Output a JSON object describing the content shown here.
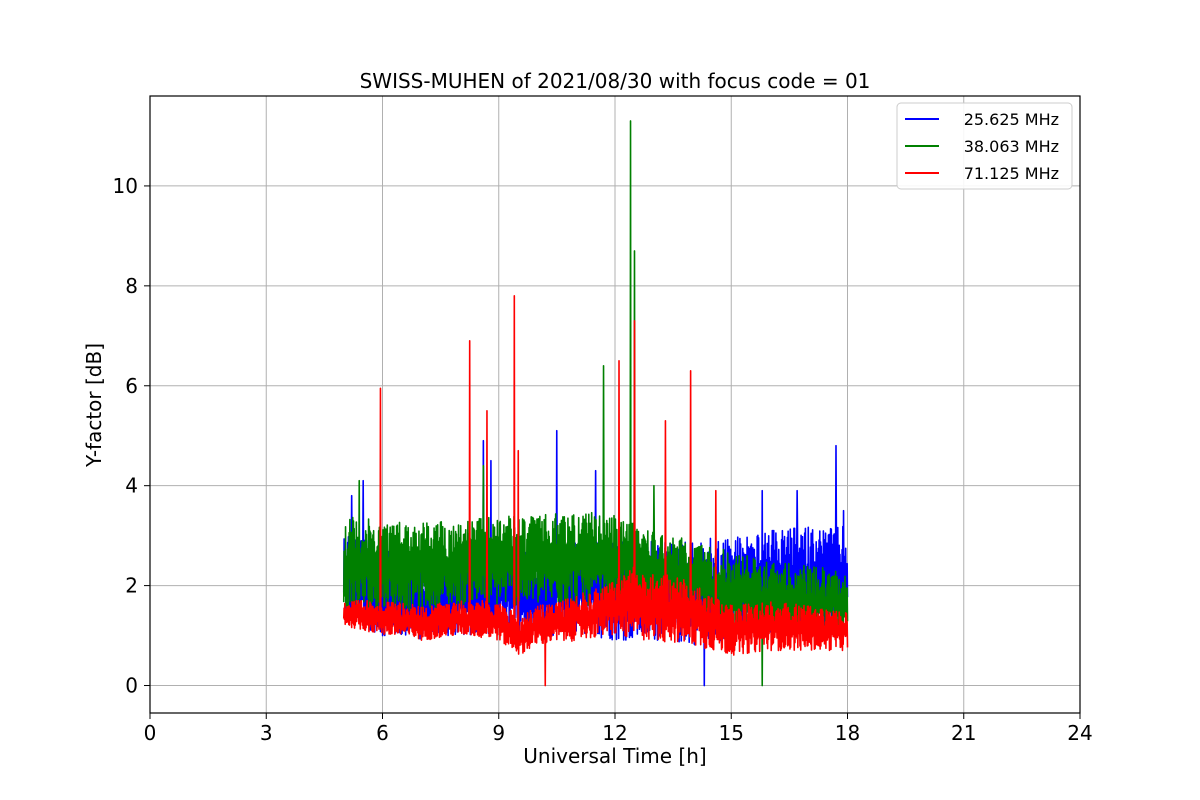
{
  "chart_data": {
    "type": "line",
    "title": "SWISS-MUHEN of 2021/08/30 with focus code = 01",
    "xlabel": "Universal Time [h]",
    "ylabel": "Y-factor [dB]",
    "xlim": [
      0,
      24
    ],
    "ylim": [
      -0.55,
      11.8
    ],
    "xticks": [
      0,
      3,
      6,
      9,
      12,
      15,
      18,
      21,
      24
    ],
    "xtick_labels": [
      "0",
      "3",
      "6",
      "9",
      "12",
      "15",
      "18",
      "21",
      "24"
    ],
    "yticks": [
      0,
      2,
      4,
      6,
      8,
      10
    ],
    "ytick_labels": [
      "0",
      "2",
      "4",
      "6",
      "8",
      "10"
    ],
    "grid": true,
    "legend_position": "top-right",
    "series": [
      {
        "name": "25.625 MHz",
        "color": "#0000ff",
        "x_range": [
          5.0,
          18.0
        ],
        "band": [
          [
            5.0,
            1.3,
            3.2
          ],
          [
            6.0,
            1.0,
            2.7
          ],
          [
            7.0,
            0.9,
            2.6
          ],
          [
            8.0,
            1.0,
            2.7
          ],
          [
            9.0,
            1.0,
            2.7
          ],
          [
            10.0,
            1.0,
            2.8
          ],
          [
            11.0,
            1.0,
            2.9
          ],
          [
            12.0,
            0.9,
            2.9
          ],
          [
            13.0,
            0.9,
            2.9
          ],
          [
            14.0,
            0.8,
            2.9
          ],
          [
            15.0,
            0.9,
            3.0
          ],
          [
            16.0,
            1.0,
            3.1
          ],
          [
            17.0,
            1.0,
            3.2
          ],
          [
            18.0,
            1.0,
            3.2
          ]
        ],
        "spikes": [
          [
            5.2,
            3.8
          ],
          [
            5.5,
            4.1
          ],
          [
            6.0,
            1.0
          ],
          [
            8.6,
            4.9
          ],
          [
            8.8,
            4.5
          ],
          [
            10.5,
            5.1
          ],
          [
            11.5,
            4.3
          ],
          [
            14.3,
            0.0
          ],
          [
            15.8,
            3.9
          ],
          [
            16.7,
            3.9
          ],
          [
            17.7,
            4.8
          ],
          [
            17.9,
            3.5
          ]
        ]
      },
      {
        "name": "38.063 MHz",
        "color": "#008000",
        "x_range": [
          5.0,
          18.0
        ],
        "band": [
          [
            5.0,
            1.4,
            3.4
          ],
          [
            6.0,
            1.5,
            3.3
          ],
          [
            7.0,
            1.5,
            3.3
          ],
          [
            8.0,
            1.6,
            3.3
          ],
          [
            9.0,
            1.6,
            3.4
          ],
          [
            10.0,
            1.6,
            3.4
          ],
          [
            11.0,
            1.6,
            3.5
          ],
          [
            12.0,
            1.6,
            3.4
          ],
          [
            13.0,
            1.6,
            3.1
          ],
          [
            14.0,
            1.4,
            2.9
          ],
          [
            15.0,
            1.1,
            2.7
          ],
          [
            16.0,
            1.0,
            2.5
          ],
          [
            17.0,
            1.0,
            2.4
          ],
          [
            18.0,
            1.0,
            2.3
          ]
        ],
        "spikes": [
          [
            5.4,
            4.1
          ],
          [
            8.6,
            4.4
          ],
          [
            11.7,
            6.4
          ],
          [
            12.4,
            11.3
          ],
          [
            12.5,
            8.7
          ],
          [
            13.0,
            4.0
          ],
          [
            15.8,
            0.0
          ]
        ]
      },
      {
        "name": "71.125 MHz",
        "color": "#ff0000",
        "x_range": [
          5.0,
          18.0
        ],
        "band": [
          [
            5.0,
            1.2,
            1.7
          ],
          [
            6.0,
            1.0,
            1.7
          ],
          [
            7.0,
            0.9,
            1.6
          ],
          [
            8.0,
            1.0,
            1.7
          ],
          [
            9.0,
            0.9,
            1.7
          ],
          [
            9.5,
            0.6,
            1.4
          ],
          [
            10.0,
            0.8,
            1.6
          ],
          [
            11.0,
            0.9,
            1.8
          ],
          [
            12.0,
            1.0,
            2.1
          ],
          [
            12.5,
            0.9,
            2.4
          ],
          [
            13.0,
            0.9,
            2.3
          ],
          [
            14.0,
            0.8,
            2.1
          ],
          [
            15.0,
            0.6,
            1.6
          ],
          [
            16.0,
            0.7,
            1.7
          ],
          [
            17.0,
            0.7,
            1.6
          ],
          [
            18.0,
            0.7,
            1.5
          ]
        ],
        "spikes": [
          [
            5.95,
            5.95
          ],
          [
            8.25,
            6.9
          ],
          [
            8.7,
            5.5
          ],
          [
            9.4,
            7.8
          ],
          [
            9.5,
            4.7
          ],
          [
            10.2,
            0.0
          ],
          [
            12.1,
            6.5
          ],
          [
            12.5,
            7.3
          ],
          [
            13.3,
            5.3
          ],
          [
            13.95,
            6.3
          ],
          [
            14.6,
            3.9
          ]
        ]
      }
    ]
  }
}
